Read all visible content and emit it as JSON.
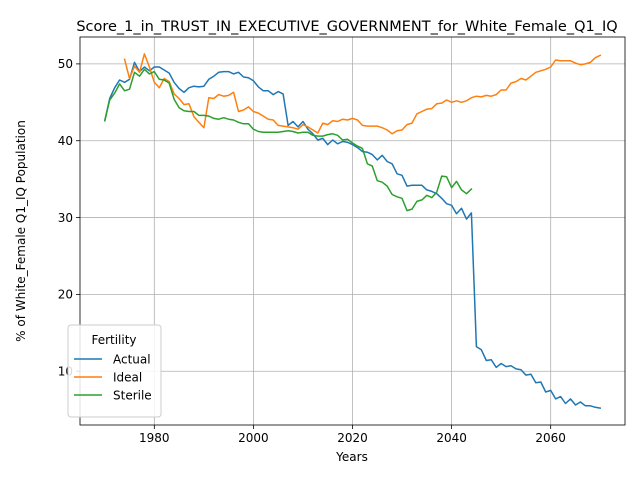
{
  "chart_data": {
    "type": "line",
    "title": "Score_1_in_TRUST_IN_EXECUTIVE_GOVERNMENT_for_White_Female_Q1_IQ",
    "xlabel": "Years",
    "ylabel": "% of White_Female Q1_IQ Population",
    "xlim": [
      1965,
      2075
    ],
    "ylim": [
      3,
      53.5
    ],
    "xticks": [
      1980,
      2000,
      2020,
      2040,
      2060
    ],
    "yticks": [
      10,
      20,
      30,
      40,
      50
    ],
    "grid": true,
    "legend": {
      "title": "Fertility",
      "position": "lower-left"
    },
    "series": [
      {
        "name": "Actual",
        "color": "#1f77b4",
        "points": [
          [
            1970,
            42.6
          ],
          [
            1971,
            45.5
          ],
          [
            1972,
            46.9
          ],
          [
            1973,
            47.9
          ],
          [
            1974,
            47.6
          ],
          [
            1975,
            48.0
          ],
          [
            1976,
            50.2
          ],
          [
            1977,
            49.0
          ],
          [
            1978,
            49.6
          ],
          [
            1979,
            49.1
          ],
          [
            1980,
            49.6
          ],
          [
            1981,
            49.6
          ],
          [
            1982,
            49.2
          ],
          [
            1983,
            48.8
          ],
          [
            1984,
            47.6
          ],
          [
            1985,
            46.8
          ],
          [
            1986,
            46.3
          ],
          [
            1987,
            46.9
          ],
          [
            1988,
            47.1
          ],
          [
            1989,
            47.0
          ],
          [
            1990,
            47.1
          ],
          [
            1991,
            48.0
          ],
          [
            1992,
            48.4
          ],
          [
            1993,
            48.9
          ],
          [
            1994,
            49.0
          ],
          [
            1995,
            49.0
          ],
          [
            1996,
            48.7
          ],
          [
            1997,
            48.9
          ],
          [
            1998,
            48.3
          ],
          [
            1999,
            48.2
          ],
          [
            2000,
            47.8
          ],
          [
            2001,
            47.0
          ],
          [
            2002,
            46.5
          ],
          [
            2003,
            46.5
          ],
          [
            2004,
            46.0
          ],
          [
            2005,
            46.4
          ],
          [
            2006,
            46.1
          ],
          [
            2007,
            42.0
          ],
          [
            2008,
            42.5
          ],
          [
            2009,
            41.8
          ],
          [
            2010,
            42.5
          ],
          [
            2011,
            41.5
          ],
          [
            2012,
            40.9
          ],
          [
            2013,
            40.1
          ],
          [
            2014,
            40.3
          ],
          [
            2015,
            39.5
          ],
          [
            2016,
            40.1
          ],
          [
            2017,
            39.6
          ],
          [
            2018,
            39.9
          ],
          [
            2019,
            39.8
          ],
          [
            2020,
            39.5
          ],
          [
            2021,
            39.1
          ],
          [
            2022,
            38.6
          ],
          [
            2023,
            38.5
          ],
          [
            2024,
            38.2
          ],
          [
            2025,
            37.5
          ],
          [
            2026,
            38.1
          ],
          [
            2027,
            37.3
          ],
          [
            2028,
            37.0
          ],
          [
            2029,
            35.7
          ],
          [
            2030,
            35.5
          ],
          [
            2031,
            34.1
          ],
          [
            2032,
            34.2
          ],
          [
            2033,
            34.2
          ],
          [
            2034,
            34.2
          ],
          [
            2035,
            33.6
          ],
          [
            2036,
            33.4
          ],
          [
            2037,
            33.1
          ],
          [
            2038,
            32.5
          ],
          [
            2039,
            31.8
          ],
          [
            2040,
            31.6
          ],
          [
            2041,
            30.5
          ],
          [
            2042,
            31.2
          ],
          [
            2043,
            29.8
          ],
          [
            2044,
            30.6
          ],
          [
            2045,
            13.2
          ],
          [
            2046,
            12.8
          ],
          [
            2047,
            11.4
          ],
          [
            2048,
            11.5
          ],
          [
            2049,
            10.5
          ],
          [
            2050,
            11.0
          ],
          [
            2051,
            10.6
          ],
          [
            2052,
            10.7
          ],
          [
            2053,
            10.3
          ],
          [
            2054,
            10.2
          ],
          [
            2055,
            9.5
          ],
          [
            2056,
            9.6
          ],
          [
            2057,
            8.5
          ],
          [
            2058,
            8.6
          ],
          [
            2059,
            7.3
          ],
          [
            2060,
            7.5
          ],
          [
            2061,
            6.4
          ],
          [
            2062,
            6.7
          ],
          [
            2063,
            5.8
          ],
          [
            2064,
            6.4
          ],
          [
            2065,
            5.6
          ],
          [
            2066,
            6.0
          ],
          [
            2067,
            5.5
          ],
          [
            2068,
            5.5
          ],
          [
            2069,
            5.3
          ],
          [
            2070,
            5.2
          ]
        ]
      },
      {
        "name": "Ideal",
        "color": "#ff7f0e",
        "points": [
          [
            1974,
            50.6
          ],
          [
            1975,
            48.1
          ],
          [
            1976,
            49.7
          ],
          [
            1977,
            48.9
          ],
          [
            1978,
            51.3
          ],
          [
            1979,
            49.6
          ],
          [
            1980,
            47.6
          ],
          [
            1981,
            46.9
          ],
          [
            1982,
            48.1
          ],
          [
            1983,
            47.7
          ],
          [
            1984,
            46.1
          ],
          [
            1985,
            45.5
          ],
          [
            1986,
            44.7
          ],
          [
            1987,
            44.8
          ],
          [
            1988,
            43.1
          ],
          [
            1989,
            42.4
          ],
          [
            1990,
            41.7
          ],
          [
            1991,
            45.6
          ],
          [
            1992,
            45.5
          ],
          [
            1993,
            46.0
          ],
          [
            1994,
            45.8
          ],
          [
            1995,
            45.9
          ],
          [
            1996,
            46.3
          ],
          [
            1997,
            43.8
          ],
          [
            1998,
            44.0
          ],
          [
            1999,
            44.4
          ],
          [
            2000,
            43.8
          ],
          [
            2001,
            43.6
          ],
          [
            2002,
            43.2
          ],
          [
            2003,
            42.8
          ],
          [
            2004,
            42.7
          ],
          [
            2005,
            42.0
          ],
          [
            2006,
            41.9
          ],
          [
            2007,
            41.8
          ],
          [
            2008,
            41.7
          ],
          [
            2009,
            41.5
          ],
          [
            2010,
            42.1
          ],
          [
            2011,
            41.8
          ],
          [
            2012,
            41.4
          ],
          [
            2013,
            41.0
          ],
          [
            2014,
            42.3
          ],
          [
            2015,
            42.1
          ],
          [
            2016,
            42.6
          ],
          [
            2017,
            42.5
          ],
          [
            2018,
            42.8
          ],
          [
            2019,
            42.7
          ],
          [
            2020,
            42.9
          ],
          [
            2021,
            42.7
          ],
          [
            2022,
            42.0
          ],
          [
            2023,
            41.9
          ],
          [
            2024,
            41.9
          ],
          [
            2025,
            41.9
          ],
          [
            2026,
            41.7
          ],
          [
            2027,
            41.4
          ],
          [
            2028,
            40.9
          ],
          [
            2029,
            41.3
          ],
          [
            2030,
            41.4
          ],
          [
            2031,
            42.1
          ],
          [
            2032,
            42.3
          ],
          [
            2033,
            43.5
          ],
          [
            2034,
            43.8
          ],
          [
            2035,
            44.1
          ],
          [
            2036,
            44.2
          ],
          [
            2037,
            44.8
          ],
          [
            2038,
            44.9
          ],
          [
            2039,
            45.3
          ],
          [
            2040,
            45.0
          ],
          [
            2041,
            45.2
          ],
          [
            2042,
            45.0
          ],
          [
            2043,
            45.2
          ],
          [
            2044,
            45.6
          ],
          [
            2045,
            45.8
          ],
          [
            2046,
            45.7
          ],
          [
            2047,
            45.9
          ],
          [
            2048,
            45.8
          ],
          [
            2049,
            46.0
          ],
          [
            2050,
            46.6
          ],
          [
            2051,
            46.6
          ],
          [
            2052,
            47.5
          ],
          [
            2053,
            47.7
          ],
          [
            2054,
            48.1
          ],
          [
            2055,
            47.9
          ],
          [
            2056,
            48.4
          ],
          [
            2057,
            48.9
          ],
          [
            2058,
            49.1
          ],
          [
            2059,
            49.3
          ],
          [
            2060,
            49.6
          ],
          [
            2061,
            50.5
          ],
          [
            2062,
            50.4
          ],
          [
            2063,
            50.4
          ],
          [
            2064,
            50.4
          ],
          [
            2065,
            50.1
          ],
          [
            2066,
            49.9
          ],
          [
            2067,
            50.0
          ],
          [
            2068,
            50.2
          ],
          [
            2069,
            50.8
          ],
          [
            2070,
            51.1
          ]
        ]
      },
      {
        "name": "Sterile",
        "color": "#2ca02c",
        "points": [
          [
            1970,
            42.6
          ],
          [
            1971,
            45.3
          ],
          [
            1972,
            46.2
          ],
          [
            1973,
            47.4
          ],
          [
            1974,
            46.5
          ],
          [
            1975,
            46.7
          ],
          [
            1976,
            48.9
          ],
          [
            1977,
            48.4
          ],
          [
            1978,
            49.3
          ],
          [
            1979,
            48.7
          ],
          [
            1980,
            49.0
          ],
          [
            1981,
            48.0
          ],
          [
            1982,
            47.9
          ],
          [
            1983,
            47.5
          ],
          [
            1984,
            45.4
          ],
          [
            1985,
            44.3
          ],
          [
            1986,
            43.9
          ],
          [
            1987,
            43.8
          ],
          [
            1988,
            43.8
          ],
          [
            1989,
            43.3
          ],
          [
            1990,
            43.3
          ],
          [
            1991,
            43.2
          ],
          [
            1992,
            42.9
          ],
          [
            1993,
            42.8
          ],
          [
            1994,
            43.0
          ],
          [
            1995,
            42.8
          ],
          [
            1996,
            42.7
          ],
          [
            1997,
            42.4
          ],
          [
            1998,
            42.2
          ],
          [
            1999,
            42.2
          ],
          [
            2000,
            41.5
          ],
          [
            2001,
            41.2
          ],
          [
            2002,
            41.1
          ],
          [
            2003,
            41.1
          ],
          [
            2004,
            41.1
          ],
          [
            2005,
            41.1
          ],
          [
            2006,
            41.2
          ],
          [
            2007,
            41.3
          ],
          [
            2008,
            41.2
          ],
          [
            2009,
            41.0
          ],
          [
            2010,
            41.1
          ],
          [
            2011,
            41.1
          ],
          [
            2012,
            40.7
          ],
          [
            2013,
            40.6
          ],
          [
            2014,
            40.6
          ],
          [
            2015,
            40.8
          ],
          [
            2016,
            40.9
          ],
          [
            2017,
            40.7
          ],
          [
            2018,
            40.1
          ],
          [
            2019,
            40.2
          ],
          [
            2020,
            39.7
          ],
          [
            2021,
            39.3
          ],
          [
            2022,
            39.0
          ],
          [
            2023,
            37.0
          ],
          [
            2024,
            36.7
          ],
          [
            2025,
            34.8
          ],
          [
            2026,
            34.6
          ],
          [
            2027,
            34.1
          ],
          [
            2028,
            33.0
          ],
          [
            2029,
            32.7
          ],
          [
            2030,
            32.5
          ],
          [
            2031,
            30.9
          ],
          [
            2032,
            31.1
          ],
          [
            2033,
            32.1
          ],
          [
            2034,
            32.3
          ],
          [
            2035,
            32.9
          ],
          [
            2036,
            32.6
          ],
          [
            2037,
            33.3
          ],
          [
            2038,
            35.4
          ],
          [
            2039,
            35.3
          ],
          [
            2040,
            33.9
          ],
          [
            2041,
            34.7
          ],
          [
            2042,
            33.6
          ],
          [
            2043,
            33.1
          ],
          [
            2044,
            33.7
          ]
        ]
      }
    ]
  }
}
